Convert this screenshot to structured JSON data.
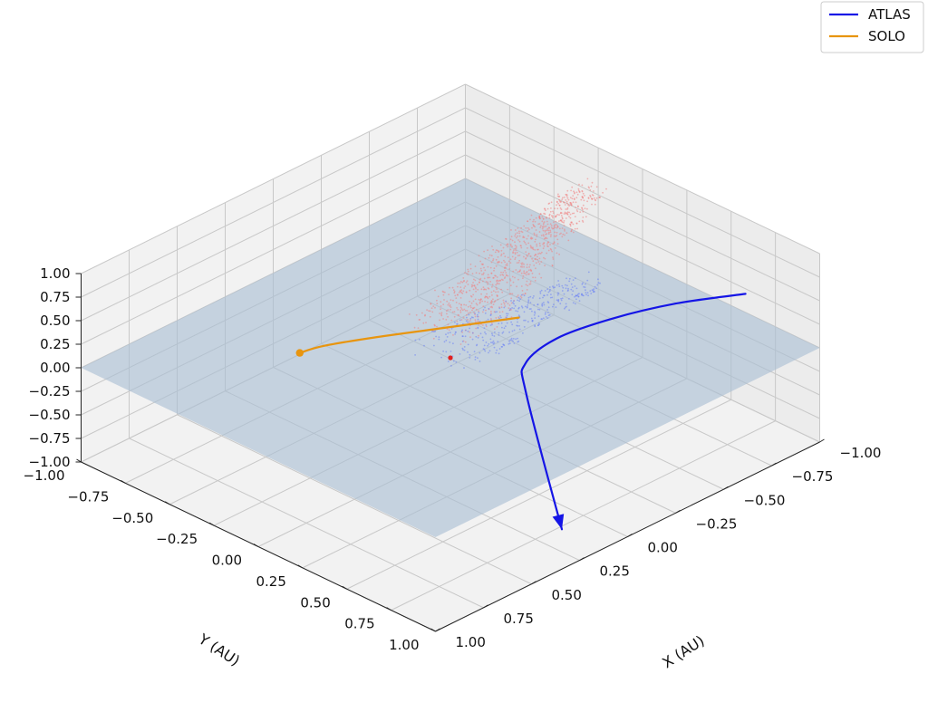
{
  "chart_data": {
    "type": "line3d",
    "axes": {
      "xlabel": "X (AU)",
      "ylabel": "Y (AU)",
      "zlabel": "",
      "xlim": [
        -1.0,
        1.0
      ],
      "ylim": [
        -1.0,
        1.0
      ],
      "zlim": [
        -1.0,
        1.0
      ],
      "xticks": [
        "−1.00",
        "−0.75",
        "−0.50",
        "−0.25",
        "0.00",
        "0.25",
        "0.50",
        "0.75",
        "1.00"
      ],
      "yticks": [
        "−1.00",
        "−0.75",
        "−0.50",
        "−0.25",
        "0.00",
        "0.25",
        "0.50",
        "0.75",
        "1.00"
      ],
      "zticks": [
        "−1.00",
        "−0.75",
        "−0.50",
        "−0.25",
        "0.00",
        "0.25",
        "0.50",
        "0.75",
        "1.00"
      ],
      "grid": true
    },
    "legend": {
      "placement": "top-right",
      "entries": [
        {
          "name": "ATLAS",
          "color": "#1515e6"
        },
        {
          "name": "SOLO",
          "color": "#e8950f"
        }
      ]
    },
    "series": [
      {
        "name": "ATLAS",
        "color": "#1515e6",
        "points": [
          [
            -0.66,
            0.95,
            0.87
          ],
          [
            -0.5,
            0.73,
            0.73
          ],
          [
            -0.36,
            0.52,
            0.52
          ],
          [
            -0.24,
            0.34,
            0.27
          ],
          [
            -0.15,
            0.26,
            0.02
          ],
          [
            -0.1,
            0.32,
            -0.2
          ],
          [
            0.25,
            0.9,
            -0.76
          ]
        ],
        "arrow_at_end": true
      },
      {
        "name": "SOLO",
        "color": "#e8950f",
        "points": [
          [
            -0.31,
            0.05,
            0.16
          ],
          [
            -0.08,
            -0.12,
            0.13
          ],
          [
            0.12,
            -0.28,
            0.09
          ],
          [
            0.28,
            -0.41,
            0.04
          ],
          [
            0.36,
            -0.46,
            0.0
          ]
        ],
        "marker_at_end": true
      }
    ],
    "point_clouds": [
      {
        "name": "cloud-above-ecliptic",
        "color": "#f08080",
        "description_role": "tail",
        "z_range": [
          0.0,
          0.97
        ]
      },
      {
        "name": "cloud-below-ecliptic",
        "color": "#6a7ff5",
        "description_role": "tail",
        "z_range": [
          -0.28,
          0.0
        ]
      }
    ],
    "sun": {
      "x": 0.0,
      "y": 0.0,
      "z": 0.0,
      "color": "#e02020"
    },
    "plane": {
      "z": 0.0,
      "color": "#a9bed4"
    }
  }
}
